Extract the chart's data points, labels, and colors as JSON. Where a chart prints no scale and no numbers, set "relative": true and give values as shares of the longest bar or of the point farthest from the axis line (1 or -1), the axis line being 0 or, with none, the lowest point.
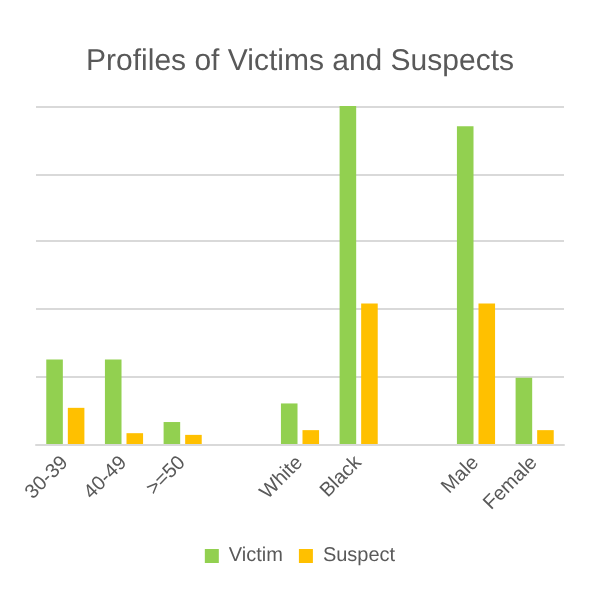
{
  "chart_data": {
    "type": "bar",
    "title": "Profiles of Victims and Suspects",
    "relative": true,
    "categories": [
      "30-39",
      "40-49",
      ">=50",
      null,
      "White",
      "Black",
      null,
      "Male",
      "Female"
    ],
    "series": [
      {
        "name": "Victim",
        "color": "#92d050",
        "values": [
          0.25,
          0.25,
          0.065,
          null,
          0.12,
          1,
          null,
          0.94,
          0.196
        ]
      },
      {
        "name": "Suspect",
        "color": "#ffc000",
        "values": [
          0.107,
          0.032,
          0.027,
          null,
          0.041,
          0.416,
          null,
          0.416,
          0.041
        ]
      }
    ],
    "grid": true,
    "legend": "bottom"
  }
}
